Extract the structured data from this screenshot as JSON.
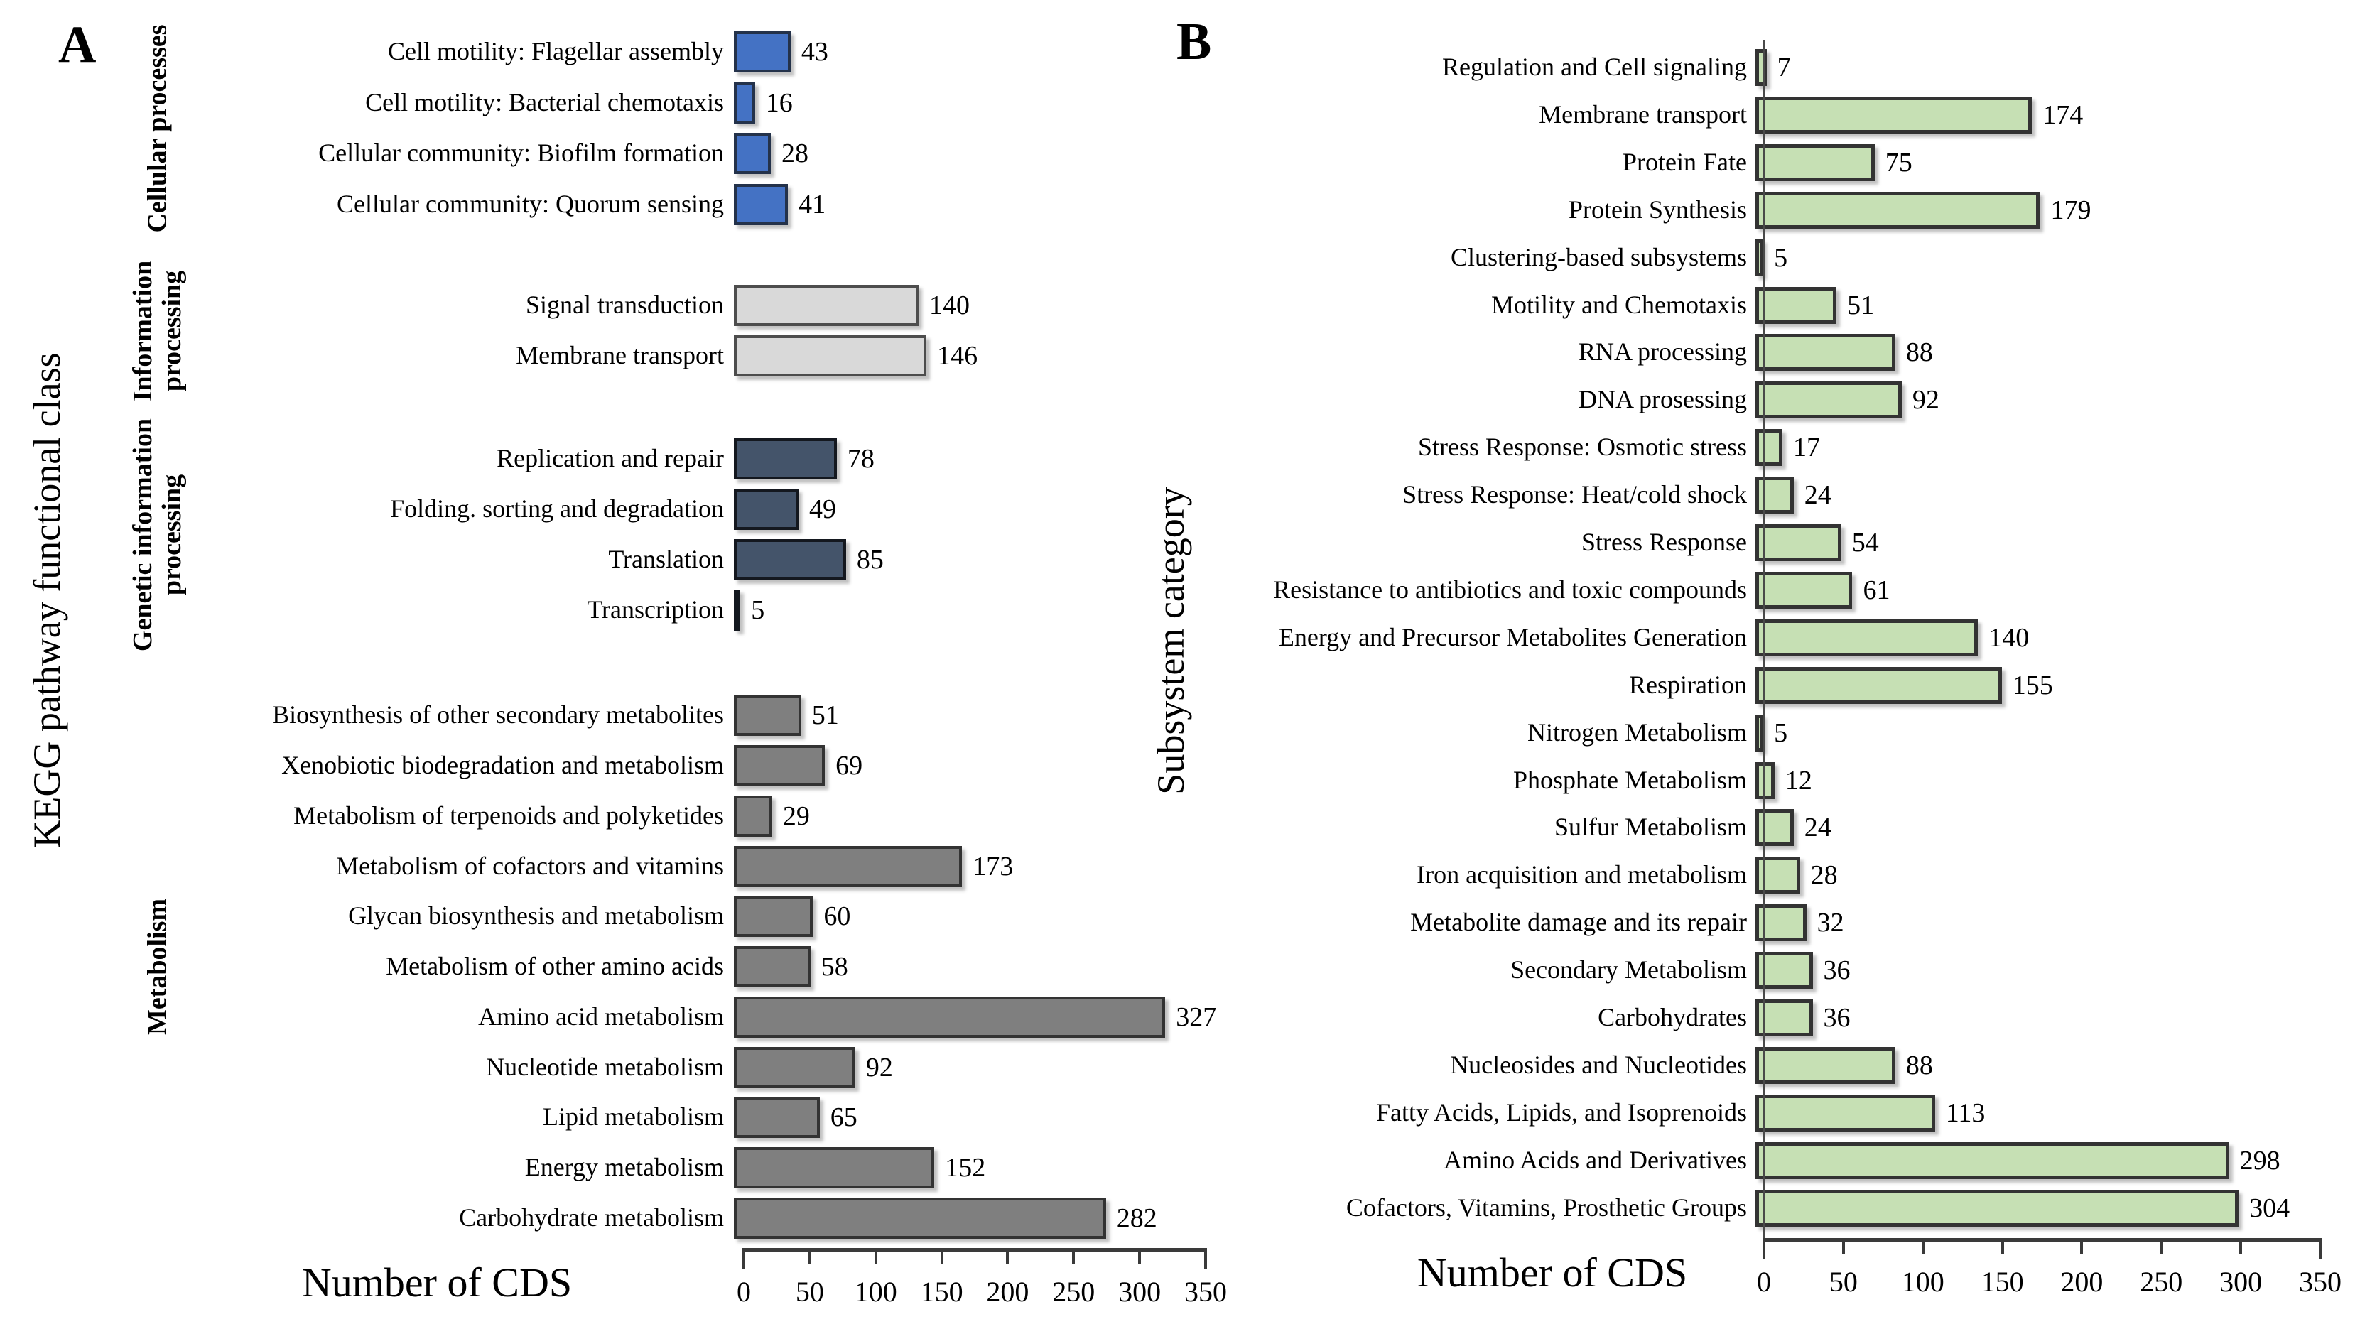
{
  "background_color": "#ffffff",
  "chart_data": [
    {
      "panel": "A",
      "type": "bar",
      "orientation": "horizontal",
      "ylabel": "KEGG pathway functional class",
      "xlabel": "Number of CDS",
      "xlim": [
        0,
        350
      ],
      "xticks": [
        0,
        50,
        100,
        150,
        200,
        250,
        300,
        350
      ],
      "grid": false,
      "groups": [
        {
          "name": "Cellular processes",
          "bar_color": "#4472c4",
          "border_color": "#24324a",
          "categories": [
            "Cell motility: Flagellar assembly",
            "Cell motility: Bacterial chemotaxis",
            "Cellular community: Biofilm formation",
            "Cellular community: Quorum sensing"
          ],
          "values": [
            43,
            16,
            28,
            41
          ]
        },
        {
          "name": "Information processing",
          "bar_color": "#d9d9d9",
          "border_color": "#4d4d4d",
          "categories": [
            "Signal transduction",
            "Membrane transport"
          ],
          "values": [
            140,
            146
          ]
        },
        {
          "name": "Genetic information processing",
          "bar_color": "#44546a",
          "border_color": "#14181f",
          "categories": [
            "Replication and repair",
            "Folding. sorting and degradation",
            "Translation",
            "Transcription"
          ],
          "values": [
            78,
            49,
            85,
            5
          ]
        },
        {
          "name": "Metabolism",
          "bar_color": "#7f7f7f",
          "border_color": "#333333",
          "categories": [
            "Biosynthesis of other secondary metabolites",
            "Xenobiotic biodegradation and metabolism",
            "Metabolism of terpenoids and polyketides",
            "Metabolism of cofactors and vitamins",
            "Glycan biosynthesis and metabolism",
            "Metabolism of other amino acids",
            "Amino acid metabolism",
            "Nucleotide metabolism",
            "Lipid metabolism",
            "Energy metabolism",
            "Carbohydrate metabolism"
          ],
          "values": [
            51,
            69,
            29,
            173,
            60,
            58,
            327,
            92,
            65,
            152,
            282
          ]
        }
      ]
    },
    {
      "panel": "B",
      "type": "bar",
      "orientation": "horizontal",
      "ylabel": "Subsystem category",
      "xlabel": "Number of CDS",
      "xlim": [
        0,
        350
      ],
      "xticks": [
        0,
        50,
        100,
        150,
        200,
        250,
        300,
        350
      ],
      "grid": false,
      "bar_color": "#c6e0b4",
      "border_color": "#333333",
      "categories": [
        "Regulation and Cell signaling",
        "Membrane transport",
        "Protein Fate",
        "Protein Synthesis",
        "Clustering-based subsystems",
        "Motility and Chemotaxis",
        "RNA processing",
        "DNA prosessing",
        "Stress Response: Osmotic stress",
        "Stress Response: Heat/cold shock",
        "Stress Response",
        "Resistance to antibiotics and toxic compounds",
        "Energy and Precursor Metabolites Generation",
        "Respiration",
        "Nitrogen Metabolism",
        "Phosphate Metabolism",
        "Sulfur Metabolism",
        "Iron acquisition and metabolism",
        "Metabolite damage and its repair",
        "Secondary Metabolism",
        "Carbohydrates",
        "Nucleosides and Nucleotides",
        "Fatty Acids, Lipids, and Isoprenoids",
        "Amino Acids and Derivatives",
        "Cofactors, Vitamins, Prosthetic Groups"
      ],
      "values": [
        7,
        174,
        75,
        179,
        5,
        51,
        88,
        92,
        17,
        24,
        54,
        61,
        140,
        155,
        5,
        12,
        24,
        28,
        32,
        36,
        36,
        88,
        113,
        298,
        304
      ]
    }
  ]
}
